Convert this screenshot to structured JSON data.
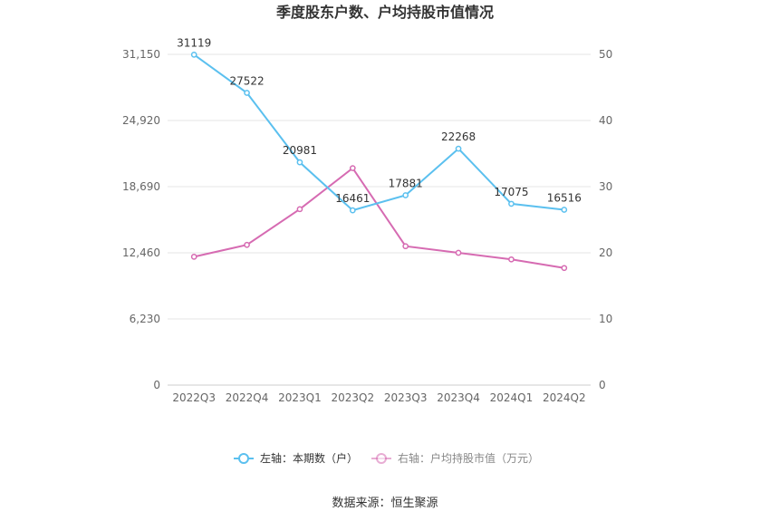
{
  "chart_data": {
    "type": "line",
    "title": "季度股东户数、户均持股市值情况",
    "categories": [
      "2022Q3",
      "2022Q4",
      "2023Q1",
      "2023Q2",
      "2023Q3",
      "2023Q4",
      "2024Q1",
      "2024Q2"
    ],
    "series": [
      {
        "name": "左轴：本期数（户）",
        "axis": "left",
        "color": "#5bc0ef",
        "values": [
          31119,
          27522,
          20981,
          16461,
          17881,
          22268,
          17075,
          16516
        ],
        "labels": [
          "31119",
          "27522",
          "20981",
          "16461",
          "17881",
          "22268",
          "17075",
          "16516"
        ]
      },
      {
        "name": "右轴：户均持股市值（万元）",
        "axis": "right",
        "color": "#d66bb2",
        "values": [
          19.4,
          21.2,
          26.6,
          32.8,
          21.0,
          20.0,
          19.0,
          17.7
        ]
      }
    ],
    "y_left": {
      "min": 0,
      "max": 31150,
      "ticks": [
        0,
        6230,
        12460,
        18690,
        24920,
        31150
      ],
      "tick_labels": [
        "0",
        "6,230",
        "12,460",
        "18,690",
        "24,920",
        "31,150"
      ]
    },
    "y_right": {
      "min": 0,
      "max": 50,
      "ticks": [
        0,
        10,
        20,
        30,
        40,
        50
      ],
      "tick_labels": [
        "0",
        "10",
        "20",
        "30",
        "40",
        "50"
      ]
    },
    "grid": true,
    "legend_position": "bottom-center"
  },
  "source": "数据来源：恒生聚源"
}
